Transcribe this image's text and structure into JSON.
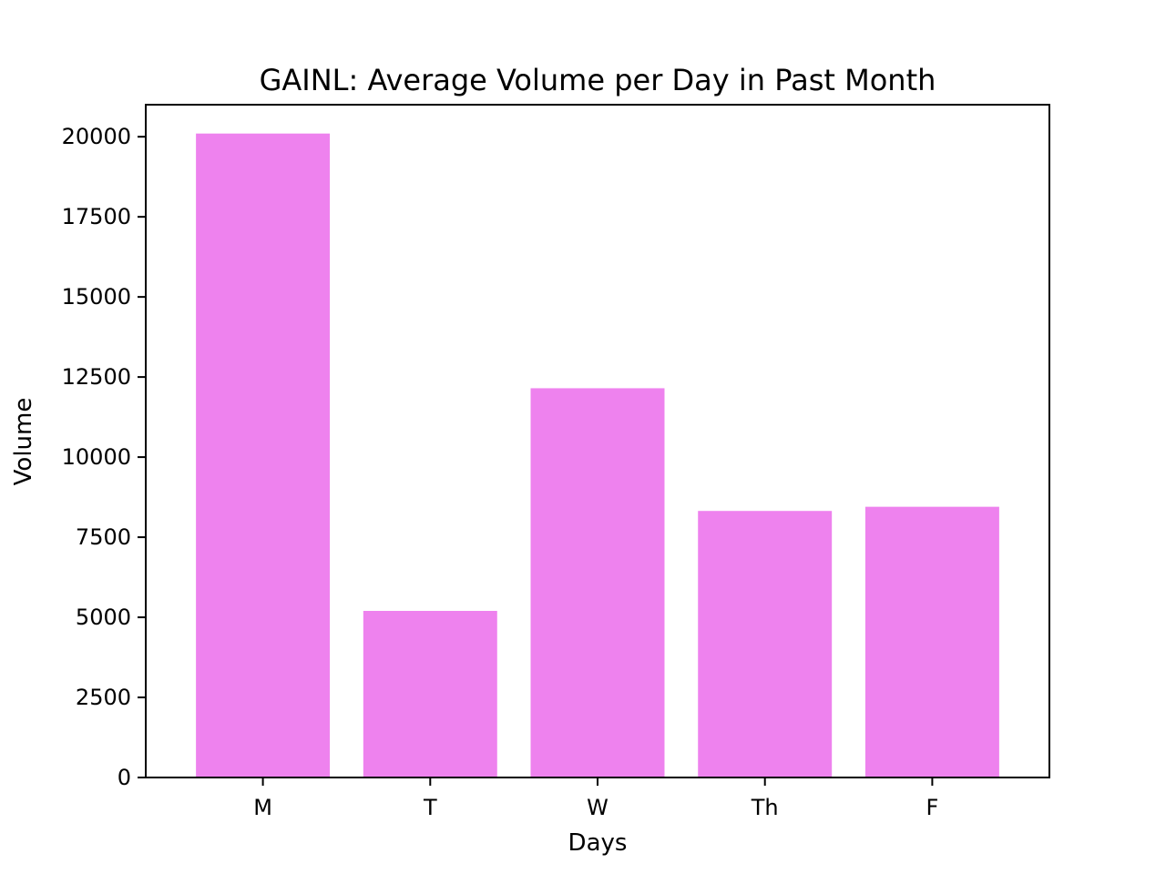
{
  "chart_data": {
    "type": "bar",
    "title": "GAINL: Average Volume per Day in Past Month",
    "xlabel": "Days",
    "ylabel": "Volume",
    "categories": [
      "M",
      "T",
      "W",
      "Th",
      "F"
    ],
    "values": [
      20100,
      5200,
      12150,
      8320,
      8450
    ],
    "ylim": [
      0,
      21000
    ],
    "yticks": [
      0,
      2500,
      5000,
      7500,
      10000,
      12500,
      15000,
      17500,
      20000
    ],
    "bar_color": "#ee82ee",
    "grid": false,
    "legend": "none"
  }
}
